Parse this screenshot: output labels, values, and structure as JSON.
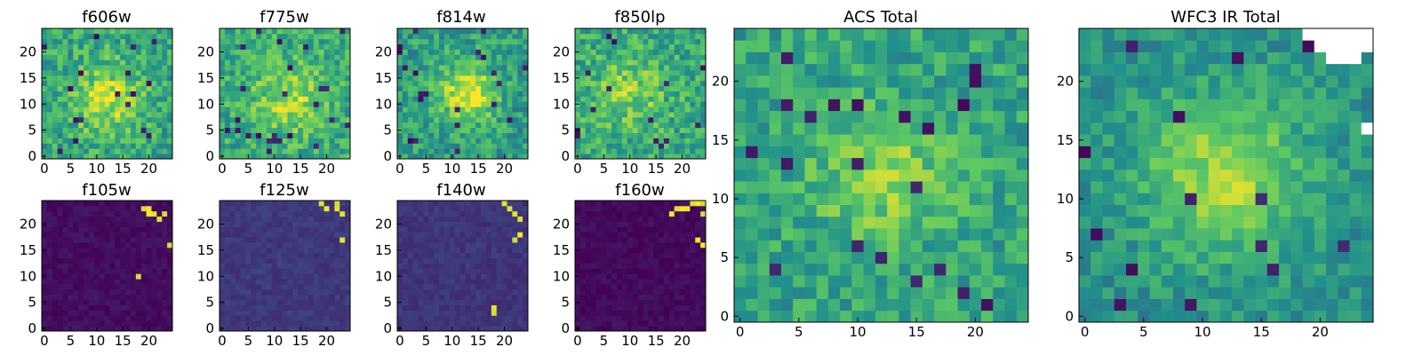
{
  "figure": {
    "colormap": [
      "#440154",
      "#3b528b",
      "#21918c",
      "#5ec962",
      "#fde725"
    ],
    "axes_color": "#000000",
    "masked_color": "#ffffff"
  },
  "chart_data": [
    {
      "type": "heatmap",
      "title": "f606w",
      "grid": [
        25,
        25
      ],
      "xlim": [
        0,
        24
      ],
      "ylim": [
        0,
        24
      ],
      "xticks": [
        0,
        5,
        10,
        15,
        20
      ],
      "yticks": [
        0,
        5,
        10,
        15,
        20
      ],
      "field": "noise_blob",
      "center": [
        12,
        11
      ],
      "peak": 0.88,
      "base": 0.58,
      "noise": 0.18,
      "spread": 5
    },
    {
      "type": "heatmap",
      "title": "f775w",
      "grid": [
        25,
        25
      ],
      "xlim": [
        0,
        24
      ],
      "ylim": [
        0,
        24
      ],
      "xticks": [
        0,
        5,
        10,
        15,
        20
      ],
      "yticks": [
        0,
        5,
        10,
        15,
        20
      ],
      "field": "noise_blob",
      "center": [
        13,
        11
      ],
      "peak": 0.86,
      "base": 0.6,
      "noise": 0.17,
      "spread": 5
    },
    {
      "type": "heatmap",
      "title": "f814w",
      "grid": [
        25,
        25
      ],
      "xlim": [
        0,
        24
      ],
      "ylim": [
        0,
        24
      ],
      "xticks": [
        0,
        5,
        10,
        15,
        20
      ],
      "yticks": [
        0,
        5,
        10,
        15,
        20
      ],
      "field": "noise_blob",
      "center": [
        13,
        12
      ],
      "peak": 0.95,
      "base": 0.55,
      "noise": 0.17,
      "spread": 4
    },
    {
      "type": "heatmap",
      "title": "f850lp",
      "grid": [
        25,
        25
      ],
      "xlim": [
        0,
        24
      ],
      "ylim": [
        0,
        24
      ],
      "xticks": [
        0,
        5,
        10,
        15,
        20
      ],
      "yticks": [
        0,
        5,
        10,
        15,
        20
      ],
      "field": "noise_blob",
      "center": [
        10,
        12
      ],
      "peak": 0.8,
      "base": 0.6,
      "noise": 0.18,
      "spread": 5
    },
    {
      "type": "heatmap",
      "title": "f105w",
      "grid": [
        25,
        25
      ],
      "xlim": [
        0,
        24
      ],
      "ylim": [
        0,
        24
      ],
      "xticks": [
        0,
        5,
        10,
        15,
        20
      ],
      "yticks": [
        0,
        5,
        10,
        15,
        20
      ],
      "field": "dark",
      "base": 0.04,
      "hot_pixels": [
        [
          19,
          23
        ],
        [
          20,
          23
        ],
        [
          21,
          22
        ],
        [
          22,
          21
        ],
        [
          23,
          22
        ],
        [
          20,
          22
        ],
        [
          24,
          16
        ],
        [
          18,
          10
        ]
      ]
    },
    {
      "type": "heatmap",
      "title": "f125w",
      "grid": [
        25,
        25
      ],
      "xlim": [
        0,
        24
      ],
      "ylim": [
        0,
        24
      ],
      "xticks": [
        0,
        5,
        10,
        15,
        20
      ],
      "yticks": [
        0,
        5,
        10,
        15,
        20
      ],
      "field": "dark",
      "base": 0.17,
      "hot_pixels": [
        [
          19,
          24
        ],
        [
          20,
          23
        ],
        [
          22,
          24
        ],
        [
          22,
          23
        ],
        [
          23,
          22
        ],
        [
          23,
          17
        ]
      ]
    },
    {
      "type": "heatmap",
      "title": "f140w",
      "grid": [
        25,
        25
      ],
      "xlim": [
        0,
        24
      ],
      "ylim": [
        0,
        24
      ],
      "xticks": [
        0,
        5,
        10,
        15,
        20
      ],
      "yticks": [
        0,
        5,
        10,
        15,
        20
      ],
      "field": "dark",
      "base": 0.16,
      "hot_pixels": [
        [
          20,
          24
        ],
        [
          21,
          23
        ],
        [
          22,
          22
        ],
        [
          23,
          21
        ],
        [
          22,
          17
        ],
        [
          23,
          18
        ],
        [
          18,
          4
        ],
        [
          18,
          3
        ]
      ]
    },
    {
      "type": "heatmap",
      "title": "f160w",
      "grid": [
        25,
        25
      ],
      "xlim": [
        0,
        24
      ],
      "ylim": [
        0,
        24
      ],
      "xticks": [
        0,
        5,
        10,
        15,
        20
      ],
      "yticks": [
        0,
        5,
        10,
        15,
        20
      ],
      "field": "dark",
      "base": 0.03,
      "hot_pixels": [
        [
          19,
          23
        ],
        [
          20,
          23
        ],
        [
          21,
          23
        ],
        [
          22,
          24
        ],
        [
          23,
          24
        ],
        [
          24,
          24
        ],
        [
          24,
          22
        ],
        [
          18,
          22
        ],
        [
          23,
          17
        ],
        [
          24,
          16
        ]
      ]
    },
    {
      "type": "heatmap",
      "title": "ACS Total",
      "grid": [
        25,
        25
      ],
      "xlim": [
        0,
        24
      ],
      "ylim": [
        0,
        24
      ],
      "xticks": [
        0,
        5,
        10,
        15,
        20
      ],
      "yticks": [
        0,
        5,
        10,
        15,
        20
      ],
      "field": "noise_blob",
      "center": [
        12,
        12
      ],
      "peak": 0.82,
      "base": 0.58,
      "noise": 0.15,
      "spread": 4
    },
    {
      "type": "heatmap",
      "title": "WFC3 IR Total",
      "grid": [
        25,
        25
      ],
      "xlim": [
        0,
        24
      ],
      "ylim": [
        0,
        24
      ],
      "xticks": [
        0,
        5,
        10,
        15,
        20
      ],
      "yticks": [
        0,
        5,
        10,
        15,
        20
      ],
      "field": "noise_blob",
      "center": [
        12,
        12
      ],
      "peak": 0.85,
      "base": 0.5,
      "noise": 0.12,
      "spread": 5,
      "masked_pixels": [
        [
          19,
          24
        ],
        [
          20,
          24
        ],
        [
          21,
          24
        ],
        [
          22,
          24
        ],
        [
          23,
          24
        ],
        [
          24,
          24
        ],
        [
          20,
          23
        ],
        [
          21,
          23
        ],
        [
          22,
          23
        ],
        [
          23,
          23
        ],
        [
          24,
          23
        ],
        [
          21,
          22
        ],
        [
          22,
          22
        ],
        [
          23,
          22
        ],
        [
          24,
          16
        ]
      ]
    }
  ]
}
